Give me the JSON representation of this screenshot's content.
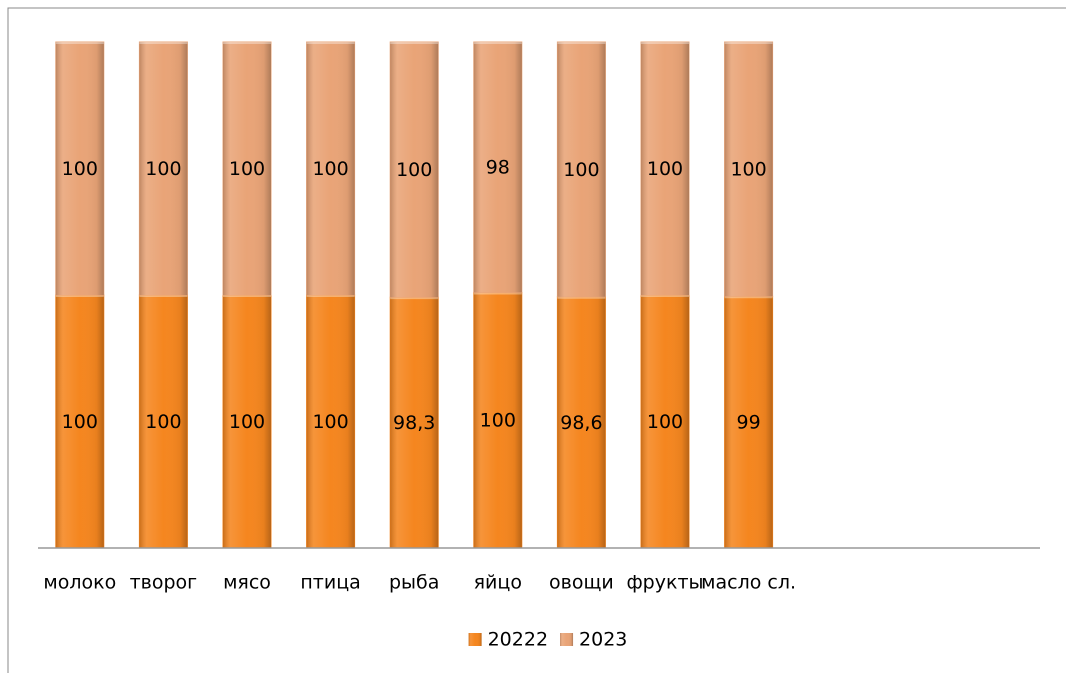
{
  "chart_data": {
    "type": "bar",
    "stack": "percent",
    "categories": [
      "молоко",
      "творог",
      "мясо",
      "птица",
      "рыба",
      "яйцо",
      "овощи",
      "фрукты",
      "масло сл."
    ],
    "series": [
      {
        "name": "20222",
        "color": "#f5861f",
        "values": [
          100,
          100,
          100,
          100,
          98.3,
          100,
          98.6,
          100,
          99
        ],
        "value_labels": [
          "100",
          "100",
          "100",
          "100",
          "98,3",
          "100",
          "98,6",
          "100",
          "99"
        ]
      },
      {
        "name": "2023",
        "color": "#e9a477",
        "values": [
          100,
          100,
          100,
          100,
          100,
          98,
          100,
          100,
          100
        ]
      }
    ],
    "legend": "bottom"
  }
}
